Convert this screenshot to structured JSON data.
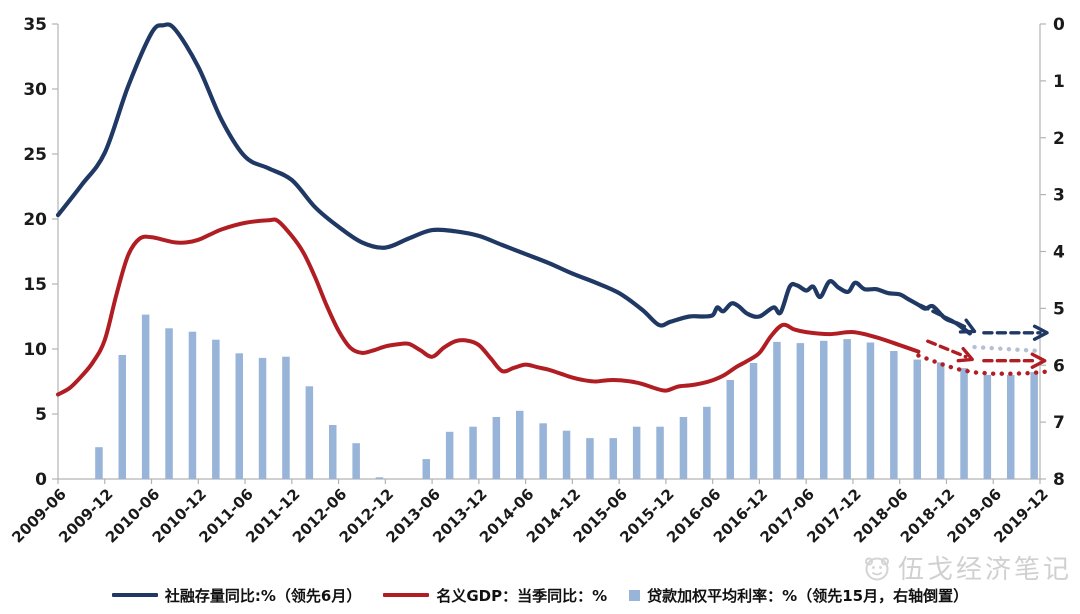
{
  "watermark": {
    "text": "伍戈经济笔记"
  },
  "legend": [
    {
      "label": "社融存量同比:%（领先6月）",
      "marker": "line",
      "color": "#1f3864"
    },
    {
      "label": "名义GDP：当季同比：%",
      "marker": "line",
      "color": "#b01e24"
    },
    {
      "label": "贷款加权平均利率：%（领先15月，右轴倒置）",
      "marker": "square",
      "color": "#98b4d9"
    }
  ],
  "chart_data": {
    "type": "line+bar combo, dual axis",
    "title": "",
    "x_start": "2009-06",
    "x_step_months": 3,
    "x_tick_labels": [
      "2009-06",
      "2009-12",
      "2010-06",
      "2010-12",
      "2011-06",
      "2011-12",
      "2012-06",
      "2012-12",
      "2013-06",
      "2013-12",
      "2014-06",
      "2014-12",
      "2015-06",
      "2015-12",
      "2016-06",
      "2016-12",
      "2017-06",
      "2017-12",
      "2018-06",
      "2018-12",
      "2019-06",
      "2019-12"
    ],
    "left_axis": {
      "range": [
        0,
        35
      ],
      "ticks": [
        0,
        5,
        10,
        15,
        20,
        25,
        30,
        35
      ]
    },
    "right_axis": {
      "range": [
        0,
        8
      ],
      "ticks": [
        0,
        1,
        2,
        3,
        4,
        5,
        6,
        7,
        8
      ],
      "inverted": true
    },
    "series": [
      {
        "name": "社融存量同比:%（领先6月）",
        "type": "line",
        "axis": "left",
        "color": "#1f3864",
        "width": 4.2,
        "points": [
          [
            0,
            20.3
          ],
          [
            1,
            22.6
          ],
          [
            2,
            25.1
          ],
          [
            3,
            30.2
          ],
          [
            4,
            34.3
          ],
          [
            4.5,
            34.9
          ],
          [
            5,
            34.6
          ],
          [
            6,
            31.7
          ],
          [
            7,
            27.6
          ],
          [
            8,
            24.8
          ],
          [
            9,
            23.9
          ],
          [
            10,
            23.0
          ],
          [
            11,
            20.9
          ],
          [
            12,
            19.4
          ],
          [
            13,
            18.2
          ],
          [
            14,
            17.8
          ],
          [
            15,
            18.5
          ],
          [
            16,
            19.15
          ],
          [
            17,
            19.05
          ],
          [
            18,
            18.7
          ],
          [
            19,
            18.0
          ],
          [
            20,
            17.3
          ],
          [
            21,
            16.6
          ],
          [
            22,
            15.8
          ],
          [
            23,
            15.1
          ],
          [
            24,
            14.3
          ],
          [
            25,
            13.0
          ],
          [
            25.7,
            11.85
          ],
          [
            26.2,
            12.1
          ],
          [
            27,
            12.5
          ],
          [
            27.6,
            12.5
          ],
          [
            28,
            12.6
          ],
          [
            28.2,
            13.2
          ],
          [
            28.45,
            12.9
          ],
          [
            28.8,
            13.5
          ],
          [
            29.1,
            13.3
          ],
          [
            29.5,
            12.7
          ],
          [
            30,
            12.5
          ],
          [
            30.6,
            13.2
          ],
          [
            30.9,
            12.8
          ],
          [
            31.3,
            14.8
          ],
          [
            31.6,
            14.9
          ],
          [
            32,
            14.5
          ],
          [
            32.3,
            14.8
          ],
          [
            32.6,
            14.0
          ],
          [
            33,
            15.2
          ],
          [
            33.4,
            14.7
          ],
          [
            33.8,
            14.4
          ],
          [
            34.1,
            15.1
          ],
          [
            34.5,
            14.6
          ],
          [
            35,
            14.6
          ],
          [
            35.5,
            14.3
          ],
          [
            36,
            14.2
          ],
          [
            36.4,
            13.8
          ],
          [
            36.8,
            13.4
          ],
          [
            37.1,
            13.1
          ],
          [
            37.4,
            13.3
          ],
          [
            37.8,
            12.6
          ],
          [
            38,
            12.3
          ],
          [
            38.4,
            12.0
          ],
          [
            38.7,
            11.6
          ],
          [
            39,
            11.2
          ]
        ]
      },
      {
        "name": "名义GDP：当季同比：%",
        "type": "line",
        "axis": "left",
        "color": "#b01e24",
        "width": 4,
        "points": [
          [
            0,
            6.5
          ],
          [
            0.5,
            7.0
          ],
          [
            1,
            7.9
          ],
          [
            1.5,
            9.0
          ],
          [
            2,
            10.7
          ],
          [
            2.5,
            14.2
          ],
          [
            3,
            17.2
          ],
          [
            3.5,
            18.5
          ],
          [
            4,
            18.6
          ],
          [
            4.5,
            18.4
          ],
          [
            5,
            18.2
          ],
          [
            5.5,
            18.2
          ],
          [
            6,
            18.4
          ],
          [
            6.5,
            18.8
          ],
          [
            7,
            19.2
          ],
          [
            8,
            19.7
          ],
          [
            9,
            19.9
          ],
          [
            9.4,
            19.85
          ],
          [
            10,
            18.7
          ],
          [
            10.5,
            17.4
          ],
          [
            11,
            15.5
          ],
          [
            11.5,
            13.3
          ],
          [
            12,
            11.4
          ],
          [
            12.5,
            10.1
          ],
          [
            13,
            9.7
          ],
          [
            13.5,
            9.9
          ],
          [
            14,
            10.2
          ],
          [
            14.5,
            10.35
          ],
          [
            15,
            10.4
          ],
          [
            15.5,
            9.9
          ],
          [
            16,
            9.4
          ],
          [
            16.5,
            10.1
          ],
          [
            17,
            10.6
          ],
          [
            17.5,
            10.65
          ],
          [
            18,
            10.3
          ],
          [
            18.5,
            9.3
          ],
          [
            19,
            8.3
          ],
          [
            19.5,
            8.55
          ],
          [
            20,
            8.8
          ],
          [
            20.5,
            8.6
          ],
          [
            21,
            8.4
          ],
          [
            21.5,
            8.1
          ],
          [
            22,
            7.8
          ],
          [
            22.5,
            7.6
          ],
          [
            23,
            7.5
          ],
          [
            23.5,
            7.6
          ],
          [
            24,
            7.6
          ],
          [
            24.5,
            7.5
          ],
          [
            25,
            7.3
          ],
          [
            25.5,
            7.0
          ],
          [
            26,
            6.8
          ],
          [
            26.5,
            7.1
          ],
          [
            27,
            7.2
          ],
          [
            27.5,
            7.35
          ],
          [
            28,
            7.6
          ],
          [
            28.5,
            8.0
          ],
          [
            29,
            8.6
          ],
          [
            29.5,
            9.1
          ],
          [
            30,
            9.7
          ],
          [
            30.5,
            11.0
          ],
          [
            31,
            11.85
          ],
          [
            31.5,
            11.5
          ],
          [
            32,
            11.3
          ],
          [
            33,
            11.15
          ],
          [
            34,
            11.3
          ],
          [
            35,
            10.9
          ],
          [
            36,
            10.3
          ],
          [
            36.8,
            9.8
          ]
        ]
      },
      {
        "name": "贷款加权平均利率：%（领先15月，右轴倒置）",
        "type": "bar",
        "axis": "right",
        "color": "#98b4d9",
        "bar_start_q": 2,
        "bar_width": 7.5,
        "values": [
          7.44,
          5.82,
          5.11,
          5.35,
          5.41,
          5.55,
          5.79,
          5.87,
          5.85,
          6.37,
          7.05,
          7.37,
          7.97,
          8.0,
          7.65,
          7.17,
          7.08,
          6.91,
          6.8,
          7.02,
          7.15,
          7.28,
          7.28,
          7.08,
          7.08,
          6.91,
          6.73,
          6.26,
          5.96,
          5.59,
          5.61,
          5.57,
          5.54,
          5.6,
          5.75,
          5.9,
          5.95,
          6.05,
          6.17,
          6.17,
          6.12
        ]
      }
    ],
    "annotations": [
      {
        "id": "blue-dashed-diagonal-arrow",
        "color": "#1f3864",
        "dash": "dashed",
        "arrow": true,
        "axis": "left",
        "points": [
          [
            36.9,
            13.35
          ],
          [
            39.2,
            11.35
          ]
        ]
      },
      {
        "id": "blue-dashed-horizontal-arrow",
        "color": "#1f3864",
        "dash": "dashed",
        "arrow": true,
        "axis": "left",
        "points": [
          [
            39.6,
            11.25
          ],
          [
            42.3,
            11.25
          ]
        ]
      },
      {
        "id": "red-dashed-diagonal-arrow",
        "color": "#b01e24",
        "dash": "dashed",
        "arrow": true,
        "axis": "left",
        "points": [
          [
            37.2,
            10.6
          ],
          [
            39.1,
            9.2
          ]
        ]
      },
      {
        "id": "red-dashed-horizontal-arrow",
        "color": "#b01e24",
        "dash": "dashed",
        "arrow": true,
        "axis": "left",
        "points": [
          [
            39.6,
            9.1
          ],
          [
            42.2,
            9.1
          ]
        ]
      },
      {
        "id": "gray-dotted-line",
        "color": "#b6c0d3",
        "dash": "dotted",
        "arrow": false,
        "axis": "left",
        "points": [
          [
            39.2,
            10.15
          ],
          [
            41.9,
            9.85
          ]
        ]
      },
      {
        "id": "red-dotted-forecast",
        "color": "#b01e24",
        "dash": "dotted",
        "arrow": false,
        "axis": "left",
        "points": [
          [
            36.8,
            9.5
          ],
          [
            37.4,
            9.1
          ],
          [
            38.0,
            8.7
          ],
          [
            38.6,
            8.4
          ],
          [
            39.2,
            8.2
          ],
          [
            40.0,
            8.1
          ],
          [
            40.8,
            8.1
          ],
          [
            41.6,
            8.15
          ],
          [
            42.2,
            8.25
          ]
        ]
      }
    ]
  }
}
